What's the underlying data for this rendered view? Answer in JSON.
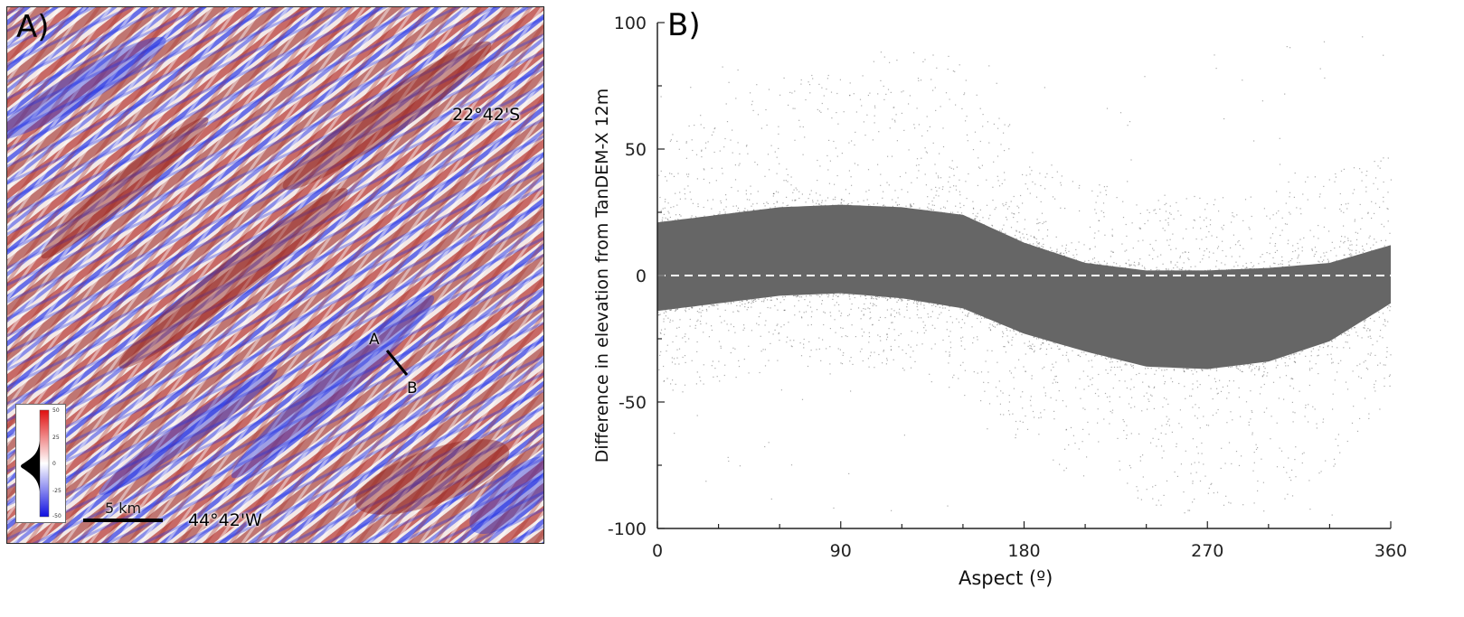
{
  "panel_a": {
    "label": "A)",
    "lat_label": "22°42'S",
    "lon_label": "44°42'W",
    "point_a": "A",
    "point_b": "B",
    "scale_label": "5 km",
    "legend_ticks": [
      "50",
      "25",
      "0",
      "-25",
      "-50"
    ],
    "colors": {
      "positive": "#b0201e",
      "negative": "#1a28e0",
      "neutral": "#ffffff"
    }
  },
  "panel_b": {
    "label": "B)"
  },
  "chart_data": {
    "type": "scatter",
    "title": "",
    "xlabel": "Aspect (º)",
    "ylabel": "Difference in elevation from TanDEM-X 12m",
    "xlim": [
      0,
      360
    ],
    "ylim": [
      -100,
      100
    ],
    "x_ticks": [
      "0",
      "90",
      "180",
      "270",
      "360"
    ],
    "y_ticks": [
      "100",
      "50",
      "0",
      "-50",
      "-100"
    ],
    "reference_line": {
      "y": 0,
      "style": "dashed",
      "color": "#ffffff"
    },
    "point_color": "#666666",
    "dense_band": {
      "aspect": [
        0,
        30,
        60,
        90,
        120,
        150,
        180,
        210,
        240,
        270,
        300,
        330,
        360
      ],
      "upper": [
        21,
        24,
        27,
        28,
        27,
        24,
        13,
        5,
        2,
        2,
        3,
        5,
        12
      ],
      "lower": [
        -14,
        -11,
        -8,
        -7,
        -9,
        -13,
        -23,
        -30,
        -36,
        -37,
        -34,
        -26,
        -11
      ]
    },
    "sparse_envelope": {
      "aspect": [
        0,
        30,
        60,
        90,
        120,
        150,
        180,
        210,
        240,
        270,
        300,
        330,
        360
      ],
      "upper": [
        50,
        60,
        70,
        80,
        85,
        75,
        45,
        30,
        25,
        25,
        28,
        35,
        40
      ],
      "lower": [
        -40,
        -35,
        -30,
        -28,
        -30,
        -38,
        -60,
        -75,
        -85,
        -88,
        -85,
        -70,
        -35
      ]
    }
  }
}
